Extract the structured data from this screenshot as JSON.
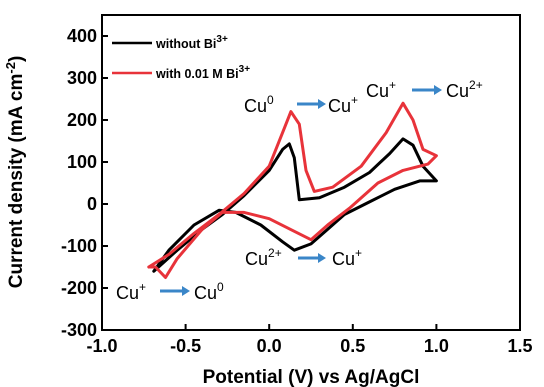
{
  "chart_data": {
    "type": "line",
    "title": "",
    "xlabel": "Potential (V) vs Ag/AgCl",
    "ylabel": "Current  density (mA cm",
    "ylabel_sup": "-2",
    "ylabel_close": ")",
    "xlim": [
      -1.0,
      1.5
    ],
    "ylim": [
      -300,
      450
    ],
    "x_ticks": [
      -1.0,
      -0.5,
      0.0,
      0.5,
      1.0,
      1.5
    ],
    "x_tick_labels": [
      "-1.0",
      "-0.5",
      "0.0",
      "0.5",
      "1.0",
      "1.5"
    ],
    "y_ticks": [
      -300,
      -200,
      -100,
      0,
      100,
      200,
      300,
      400
    ],
    "y_tick_labels": [
      "-300",
      "-200",
      "-100",
      "0",
      "100",
      "200",
      "300",
      "400"
    ],
    "grid": false,
    "legend_position": "top-left",
    "series": [
      {
        "name": "without Bi",
        "name_sup": "3+",
        "color": "#000000",
        "points": [
          [
            -0.69,
            -160
          ],
          [
            -0.55,
            -110
          ],
          [
            -0.4,
            -60
          ],
          [
            -0.28,
            -25
          ],
          [
            -0.15,
            20
          ],
          [
            0.0,
            80
          ],
          [
            0.08,
            130
          ],
          [
            0.12,
            143
          ],
          [
            0.15,
            110
          ],
          [
            0.18,
            10
          ],
          [
            0.3,
            15
          ],
          [
            0.45,
            40
          ],
          [
            0.6,
            75
          ],
          [
            0.72,
            120
          ],
          [
            0.8,
            155
          ],
          [
            0.86,
            140
          ],
          [
            0.92,
            90
          ],
          [
            1.0,
            55
          ],
          [
            0.9,
            55
          ],
          [
            0.75,
            35
          ],
          [
            0.6,
            5
          ],
          [
            0.45,
            -25
          ],
          [
            0.35,
            -60
          ],
          [
            0.25,
            -95
          ],
          [
            0.15,
            -110
          ],
          [
            0.08,
            -90
          ],
          [
            -0.05,
            -50
          ],
          [
            -0.2,
            -20
          ],
          [
            -0.3,
            -15
          ],
          [
            -0.45,
            -50
          ],
          [
            -0.6,
            -110
          ],
          [
            -0.69,
            -160
          ]
        ]
      },
      {
        "name": "with 0.01 M Bi",
        "name_sup": "3+",
        "color": "#e8333a",
        "points": [
          [
            -0.72,
            -150
          ],
          [
            -0.6,
            -120
          ],
          [
            -0.45,
            -70
          ],
          [
            -0.3,
            -25
          ],
          [
            -0.15,
            25
          ],
          [
            0.0,
            90
          ],
          [
            0.08,
            170
          ],
          [
            0.13,
            220
          ],
          [
            0.18,
            190
          ],
          [
            0.22,
            80
          ],
          [
            0.27,
            30
          ],
          [
            0.38,
            40
          ],
          [
            0.55,
            90
          ],
          [
            0.7,
            170
          ],
          [
            0.8,
            240
          ],
          [
            0.86,
            200
          ],
          [
            0.92,
            130
          ],
          [
            1.0,
            115
          ],
          [
            0.95,
            95
          ],
          [
            0.8,
            80
          ],
          [
            0.65,
            50
          ],
          [
            0.48,
            -10
          ],
          [
            0.35,
            -50
          ],
          [
            0.25,
            -85
          ],
          [
            0.15,
            -65
          ],
          [
            0.0,
            -35
          ],
          [
            -0.15,
            -20
          ],
          [
            -0.28,
            -20
          ],
          [
            -0.4,
            -60
          ],
          [
            -0.55,
            -130
          ],
          [
            -0.62,
            -175
          ],
          [
            -0.68,
            -150
          ],
          [
            -0.72,
            -150
          ]
        ]
      }
    ],
    "annotations": [
      {
        "from": "Cu",
        "from_sup": "0",
        "to": "Cu",
        "to_sup": "+"
      },
      {
        "from": "Cu",
        "from_sup": "+",
        "to": "Cu",
        "to_sup": "2+"
      },
      {
        "from": "Cu",
        "from_sup": "2+",
        "to": "Cu",
        "to_sup": "+"
      },
      {
        "from": "Cu",
        "from_sup": "+",
        "to": "Cu",
        "to_sup": "0"
      }
    ],
    "arrow_color": "#3a86c8"
  }
}
